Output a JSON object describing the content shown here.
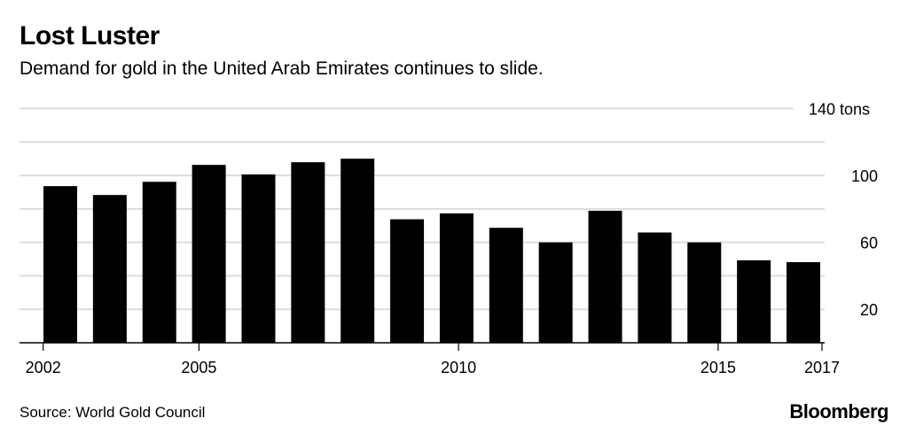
{
  "chart_data": {
    "type": "bar",
    "title": "Lost Luster",
    "subtitle": "Demand for gold in the United Arab Emirates continues to slide.",
    "categories": [
      "2002",
      "2003",
      "2004",
      "2005",
      "2006",
      "2007",
      "2008",
      "2009",
      "2010",
      "2011",
      "2012",
      "2013",
      "2014",
      "2015",
      "2016",
      "2017"
    ],
    "values": [
      93.6,
      88.3,
      96.2,
      106.3,
      100.6,
      107.9,
      110,
      73.8,
      77.3,
      68.7,
      60,
      78.9,
      65.9,
      60,
      49.3,
      48.2
    ],
    "ylabel": "tons",
    "ylim": [
      0,
      140
    ],
    "y_ticks": [
      {
        "value": 20,
        "label": "20"
      },
      {
        "value": 60,
        "label": "60"
      },
      {
        "value": 100,
        "label": "100"
      },
      {
        "value": 140,
        "label": "140 tons"
      }
    ],
    "gridlines": [
      20,
      40,
      60,
      80,
      100,
      120,
      140
    ],
    "x_ticks": [
      {
        "year": 2002,
        "label": "2002"
      },
      {
        "year": 2005,
        "label": "2005"
      },
      {
        "year": 2010,
        "label": "2010"
      },
      {
        "year": 2015,
        "label": "2015"
      },
      {
        "year": 2017,
        "label": "2017"
      }
    ],
    "grid": true,
    "colors": {
      "bar": "#000000",
      "grid": "#dcdcdc"
    }
  },
  "footer": {
    "source": "Source: World Gold Council",
    "logo": "Bloomberg"
  }
}
